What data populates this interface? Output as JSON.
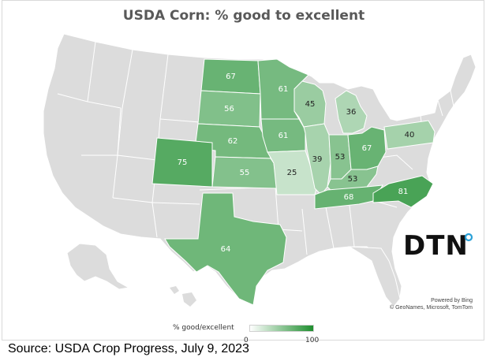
{
  "title": "USDA Corn: % good to excellent",
  "legend": {
    "label": "% good/excellent",
    "min": "0",
    "max": "100",
    "low_color": "#ffffff",
    "high_color": "#1e8e2e"
  },
  "colors": {
    "no_data": "#dcdcdc",
    "state_border": "#ffffff"
  },
  "states": [
    {
      "id": "ND",
      "value": 67
    },
    {
      "id": "MN",
      "value": 61
    },
    {
      "id": "SD",
      "value": 56
    },
    {
      "id": "WI",
      "value": 45
    },
    {
      "id": "MI",
      "value": 36
    },
    {
      "id": "NE",
      "value": 62
    },
    {
      "id": "IA",
      "value": 61
    },
    {
      "id": "PA",
      "value": 40
    },
    {
      "id": "CO",
      "value": 75
    },
    {
      "id": "IL",
      "value": 39
    },
    {
      "id": "IN",
      "value": 53
    },
    {
      "id": "OH",
      "value": 67
    },
    {
      "id": "KS",
      "value": 55
    },
    {
      "id": "MO",
      "value": 25
    },
    {
      "id": "KY",
      "value": 53
    },
    {
      "id": "TN",
      "value": 68
    },
    {
      "id": "NC",
      "value": 81
    },
    {
      "id": "TX",
      "value": 64
    }
  ],
  "logo": {
    "text": "DTN",
    "accent_color": "#2aa1d8"
  },
  "credit": {
    "line1": "Powered by Bing",
    "line2": "© GeoNames, Microsoft, TomTom"
  },
  "source": "Source: USDA Crop Progress, July 9, 2023"
}
